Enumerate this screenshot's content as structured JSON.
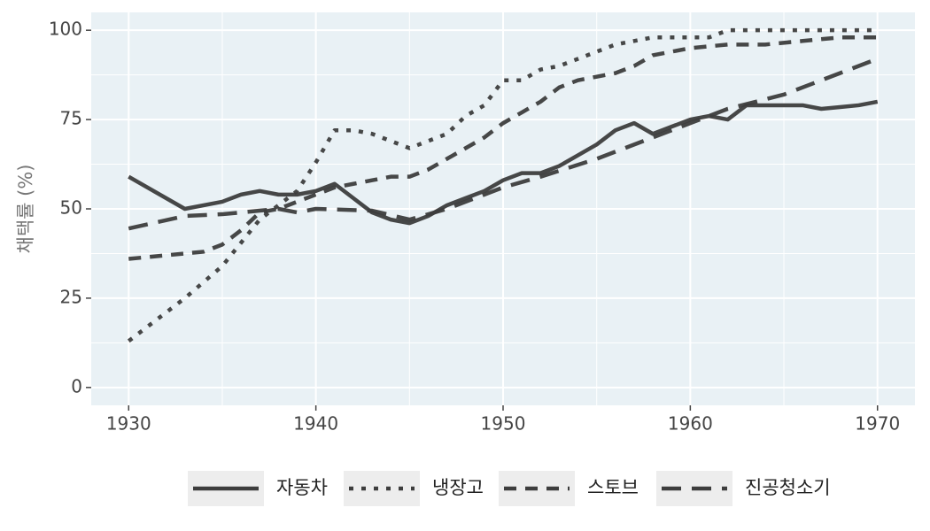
{
  "chart_data": {
    "type": "line",
    "y_label": "채택률 (%)",
    "xlim": [
      1928,
      1972
    ],
    "xticks": [
      1930,
      1940,
      1950,
      1960,
      1970
    ],
    "ylim": [
      -5,
      105
    ],
    "yticks": [
      0,
      25,
      50,
      75,
      100
    ],
    "grid": true,
    "legend_position": "bottom",
    "series": [
      {
        "name": "자동차",
        "color": "#3d3d3d",
        "linetype": "solid",
        "x": [
          1930,
          1933,
          1935,
          1936,
          1937,
          1938,
          1939,
          1940,
          1941,
          1942,
          1943,
          1944,
          1945,
          1946,
          1947,
          1948,
          1949,
          1950,
          1951,
          1952,
          1953,
          1954,
          1955,
          1956,
          1957,
          1958,
          1959,
          1960,
          1961,
          1962,
          1963,
          1964,
          1965,
          1966,
          1967,
          1968,
          1969,
          1970
        ],
        "values": [
          59,
          50,
          52,
          54,
          55,
          54,
          54,
          55,
          57,
          53,
          49,
          47,
          46,
          48,
          51,
          53,
          55,
          58,
          60,
          60,
          62,
          65,
          68,
          72,
          74,
          71,
          73,
          75,
          76,
          75,
          79,
          79,
          79,
          79,
          78,
          78.5,
          79,
          80
        ]
      },
      {
        "name": "냉장고",
        "color": "#3d3d3d",
        "linetype": "dotted",
        "x": [
          1930,
          1932,
          1933,
          1935,
          1937,
          1939,
          1940,
          1941,
          1942,
          1943,
          1945,
          1947,
          1948,
          1949,
          1950,
          1951,
          1952,
          1953,
          1954,
          1955,
          1956,
          1957,
          1958,
          1960,
          1961,
          1962,
          1970
        ],
        "values": [
          13,
          21,
          25,
          34,
          47,
          55,
          63,
          72,
          72,
          71,
          67,
          71,
          76,
          79,
          86,
          86,
          89,
          90,
          92,
          94,
          96,
          97,
          98,
          98,
          98,
          100,
          100
        ]
      },
      {
        "name": "스토브",
        "color": "#3d3d3d",
        "linetype": "dashed",
        "x": [
          1930,
          1932,
          1934,
          1935,
          1936,
          1937,
          1938,
          1939,
          1940,
          1941,
          1942,
          1943,
          1944,
          1945,
          1946,
          1947,
          1948,
          1949,
          1950,
          1951,
          1952,
          1953,
          1954,
          1955,
          1956,
          1957,
          1958,
          1959,
          1960,
          1962,
          1964,
          1966,
          1968,
          1970
        ],
        "values": [
          36,
          37,
          38,
          40,
          44,
          49,
          50,
          52,
          54,
          56,
          57,
          58,
          59,
          59,
          61,
          64,
          67,
          70,
          74,
          77,
          80,
          84,
          86,
          87,
          88,
          90,
          93,
          94,
          95,
          96,
          96,
          97,
          98,
          98
        ]
      },
      {
        "name": "진공청소기",
        "color": "#3d3d3d",
        "linetype": "longdash",
        "x": [
          1930,
          1933,
          1935,
          1937,
          1938,
          1939,
          1940,
          1943,
          1945,
          1947,
          1950,
          1952,
          1955,
          1958,
          1960,
          1962,
          1965,
          1968,
          1970
        ],
        "values": [
          44.5,
          48,
          48.5,
          49.5,
          50,
          49,
          50,
          49.5,
          47,
          50,
          56,
          59,
          64,
          70,
          74,
          78,
          82,
          88,
          92
        ]
      }
    ]
  }
}
